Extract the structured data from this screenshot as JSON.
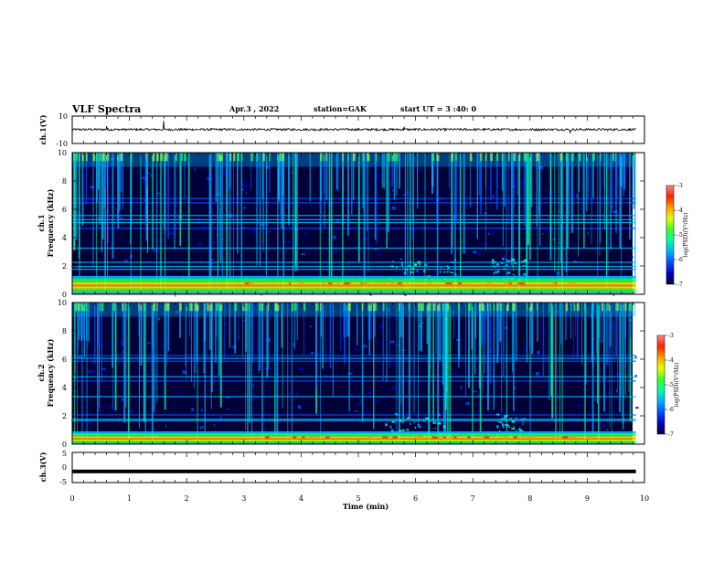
{
  "header": {
    "title": "VLF Spectra",
    "date": "Apr.3 , 2022",
    "station": "station=GAK",
    "start": "start UT = 3 :40: 0"
  },
  "colors": {
    "colormap": [
      "#000040",
      "#0000c0",
      "#0050ff",
      "#00b4ff",
      "#00ffb0",
      "#40ff20",
      "#e8ff00",
      "#ffa000",
      "#ff2000",
      "#ff8888",
      "#ffffff"
    ],
    "trace": "#000000",
    "frame": "#000000"
  },
  "chart_data": [
    {
      "id": "ch1",
      "type": "line",
      "ylabel": "ch.1(V)",
      "ylim": [
        -10,
        10
      ],
      "yticks": [
        "10",
        "-10"
      ],
      "series_level": 0.2,
      "noise_amplitude": 0.8,
      "spikes": [
        {
          "x": 0.6,
          "y": 2.6
        },
        {
          "x": 1.6,
          "y": 6.5
        },
        {
          "x": 5.8,
          "y": 2.2
        },
        {
          "x": 8.7,
          "y": -2.5
        }
      ]
    },
    {
      "id": "ch1-spec",
      "type": "heatmap",
      "ylabel_lines": [
        "ch.1",
        "Frequency (kHz)"
      ],
      "ylim": [
        0,
        10
      ],
      "yticks": [
        "0",
        "2",
        "4",
        "6",
        "8",
        "10"
      ],
      "colorbar": {
        "label": "log(PSD)(V²/Hz)",
        "range": [
          -7,
          -3
        ],
        "ticks": [
          "-3",
          "-4",
          "-5",
          "-6",
          "-7"
        ]
      },
      "lines_khz": [
        6.8,
        6.5,
        5.6,
        5.3,
        5.1,
        4.7,
        3.3,
        2.3,
        2.0,
        1.8
      ],
      "band_khz": [
        0.1,
        1.3
      ],
      "burst_regions": [
        {
          "x0": 5.5,
          "x1": 6.7,
          "f0": 1.0,
          "f1": 2.6
        },
        {
          "x0": 7.3,
          "x1": 7.9,
          "f0": 1.0,
          "f1": 2.6
        }
      ]
    },
    {
      "id": "ch2-spec",
      "type": "heatmap",
      "ylabel_lines": [
        "ch.2",
        "Frequency (kHz)"
      ],
      "ylim": [
        0,
        10
      ],
      "yticks": [
        "0",
        "2",
        "4",
        "6",
        "8",
        "10"
      ],
      "colorbar": {
        "label": "log(PSD)(V²/Hz)",
        "range": [
          -7,
          -3
        ],
        "ticks": [
          "-3",
          "-4",
          "-5",
          "-6",
          "-7"
        ]
      },
      "lines_khz": [
        6.3,
        6.1,
        5.9,
        4.8,
        4.5,
        3.4,
        2.1,
        1.8,
        1.7,
        0.9
      ],
      "band_khz": [
        0.0,
        0.9
      ],
      "burst_regions": [
        {
          "x0": 5.4,
          "x1": 6.6,
          "f0": 0.6,
          "f1": 2.2
        },
        {
          "x0": 7.4,
          "x1": 7.9,
          "f0": 0.6,
          "f1": 2.2
        }
      ]
    },
    {
      "id": "ch3",
      "type": "line",
      "ylabel": "ch.3(V)",
      "ylim": [
        -5,
        5
      ],
      "yticks": [
        "5",
        "0",
        "-5"
      ],
      "series_level": -1.3
    }
  ],
  "x_axis": {
    "label": "Time (min)",
    "range": [
      0,
      10
    ],
    "data_end": 9.85,
    "ticks": [
      "0",
      "1",
      "2",
      "3",
      "4",
      "5",
      "6",
      "7",
      "8",
      "9",
      "10"
    ]
  }
}
